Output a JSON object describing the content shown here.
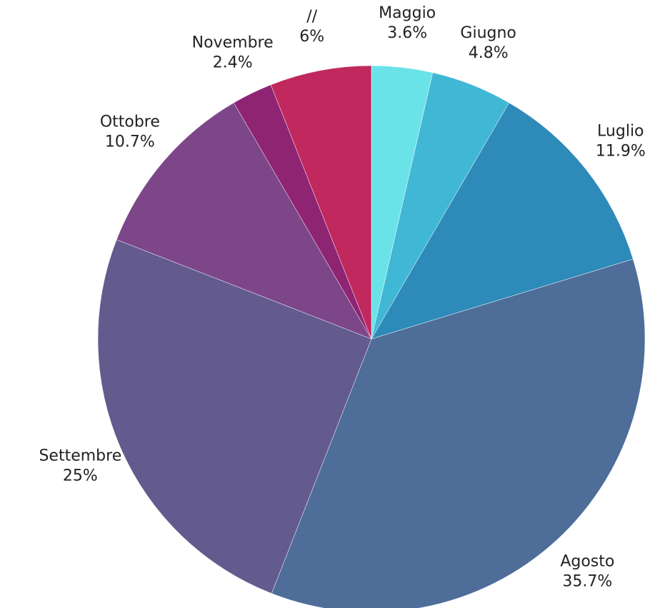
{
  "chart_data": {
    "type": "pie",
    "categories": [
      "Maggio",
      "Giugno",
      "Luglio",
      "Agosto",
      "Settembre",
      "Ottobre",
      "Novembre",
      "//"
    ],
    "values": [
      3.6,
      4.8,
      11.9,
      35.7,
      25,
      10.7,
      2.4,
      6
    ],
    "value_labels": [
      "3.6%",
      "4.8%",
      "11.9%",
      "35.7%",
      "25%",
      "10.7%",
      "2.4%",
      "6%"
    ],
    "colors": [
      "#6ae3e8",
      "#41b7d6",
      "#2d8ab9",
      "#4e6d99",
      "#635a8e",
      "#7d4689",
      "#8f2473",
      "#c0285e"
    ]
  }
}
